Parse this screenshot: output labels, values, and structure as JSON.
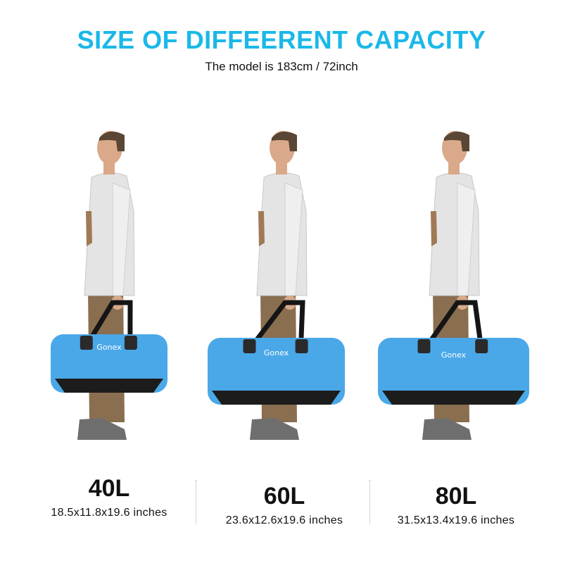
{
  "header": {
    "title": "SIZE OF DIFFEERENT CAPACITY",
    "subtitle": "The model is 183cm / 72inch"
  },
  "brand_on_bag": "Gonex",
  "colors": {
    "accent": "#1ab8e8",
    "bag": "#4aa8e8",
    "bag_base": "#1c1c1c"
  },
  "sizes": [
    {
      "capacity": "40L",
      "dimensions": "18.5x11.8x19.6 inches"
    },
    {
      "capacity": "60L",
      "dimensions": "23.6x12.6x19.6 inches"
    },
    {
      "capacity": "80L",
      "dimensions": "31.5x13.4x19.6 inches"
    }
  ]
}
